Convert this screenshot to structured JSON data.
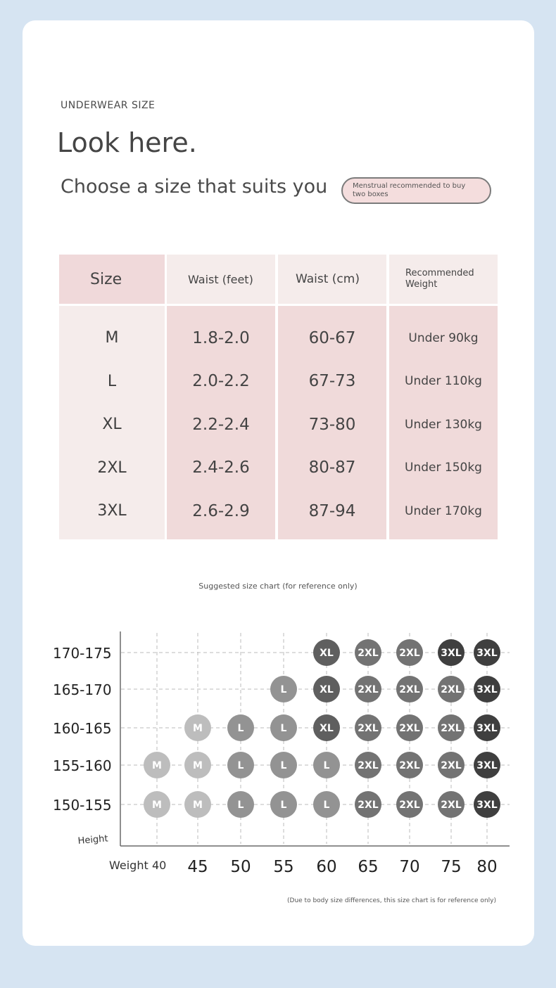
{
  "header": {
    "eyebrow": "UNDERWEAR SIZE",
    "headline": "Look here.",
    "subhead": "Choose a size that suits you",
    "note": "Menstrual recommended to buy two boxes"
  },
  "size_table": {
    "headers": [
      "Size",
      "Waist (feet)",
      "Waist (cm)",
      "Recommended Weight"
    ],
    "sizes": [
      "M",
      "L",
      "XL",
      "2XL",
      "3XL"
    ],
    "waist_feet": [
      "1.8-2.0",
      "2.0-2.2",
      "2.2-2.4",
      "2.4-2.6",
      "2.6-2.9"
    ],
    "waist_cm": [
      "60-67",
      "67-73",
      "73-80",
      "80-87",
      "87-94"
    ],
    "weight": [
      "Under 90kg",
      "Under 110kg",
      "Under 130kg",
      "Under 150kg",
      "Under 170kg"
    ]
  },
  "colors": {
    "background": "#d6e4f2",
    "header_pink": "#f0d9da",
    "header_light": "#f5eceb",
    "cell_pink": "#f0dada",
    "cell_light": "#f5eceb",
    "size_M": "#bdbdbd",
    "size_L": "#939393",
    "size_XL": "#5f5f5f",
    "size_2XL": "#737373",
    "size_3XL": "#3f3f3f"
  },
  "chart_caption": "Suggested size chart (for reference only)",
  "footnote": "(Due to body size differences, this size chart is for reference only)",
  "chart_data": {
    "type": "scatter",
    "title": "Suggested size chart (for reference only)",
    "xlabel": "Weight",
    "ylabel": "Height",
    "x_ticks": [
      "40",
      "45",
      "50",
      "55",
      "60",
      "65",
      "70",
      "75",
      "80"
    ],
    "y_ticks": [
      "150-155",
      "155-160",
      "160-165",
      "165-170",
      "170-175"
    ],
    "grid": true,
    "grid_style": "dashed",
    "points": [
      {
        "x": "40",
        "y": "150-155",
        "size": "M"
      },
      {
        "x": "45",
        "y": "150-155",
        "size": "M"
      },
      {
        "x": "50",
        "y": "150-155",
        "size": "L"
      },
      {
        "x": "55",
        "y": "150-155",
        "size": "L"
      },
      {
        "x": "60",
        "y": "150-155",
        "size": "L"
      },
      {
        "x": "65",
        "y": "150-155",
        "size": "2XL"
      },
      {
        "x": "70",
        "y": "150-155",
        "size": "2XL"
      },
      {
        "x": "75",
        "y": "150-155",
        "size": "2XL"
      },
      {
        "x": "80",
        "y": "150-155",
        "size": "3XL"
      },
      {
        "x": "40",
        "y": "155-160",
        "size": "M"
      },
      {
        "x": "45",
        "y": "155-160",
        "size": "M"
      },
      {
        "x": "50",
        "y": "155-160",
        "size": "L"
      },
      {
        "x": "55",
        "y": "155-160",
        "size": "L"
      },
      {
        "x": "60",
        "y": "155-160",
        "size": "L"
      },
      {
        "x": "65",
        "y": "155-160",
        "size": "2XL"
      },
      {
        "x": "70",
        "y": "155-160",
        "size": "2XL"
      },
      {
        "x": "75",
        "y": "155-160",
        "size": "2XL"
      },
      {
        "x": "80",
        "y": "155-160",
        "size": "3XL"
      },
      {
        "x": "45",
        "y": "160-165",
        "size": "M"
      },
      {
        "x": "50",
        "y": "160-165",
        "size": "L"
      },
      {
        "x": "55",
        "y": "160-165",
        "size": "L"
      },
      {
        "x": "60",
        "y": "160-165",
        "size": "XL"
      },
      {
        "x": "65",
        "y": "160-165",
        "size": "2XL"
      },
      {
        "x": "70",
        "y": "160-165",
        "size": "2XL"
      },
      {
        "x": "75",
        "y": "160-165",
        "size": "2XL"
      },
      {
        "x": "80",
        "y": "160-165",
        "size": "3XL"
      },
      {
        "x": "55",
        "y": "165-170",
        "size": "L"
      },
      {
        "x": "60",
        "y": "165-170",
        "size": "XL"
      },
      {
        "x": "65",
        "y": "165-170",
        "size": "2XL"
      },
      {
        "x": "70",
        "y": "165-170",
        "size": "2XL"
      },
      {
        "x": "75",
        "y": "165-170",
        "size": "2XL"
      },
      {
        "x": "80",
        "y": "165-170",
        "size": "3XL"
      },
      {
        "x": "60",
        "y": "170-175",
        "size": "XL"
      },
      {
        "x": "65",
        "y": "170-175",
        "size": "2XL"
      },
      {
        "x": "70",
        "y": "170-175",
        "size": "2XL"
      },
      {
        "x": "75",
        "y": "170-175",
        "size": "3XL"
      },
      {
        "x": "80",
        "y": "170-175",
        "size": "3XL"
      }
    ]
  }
}
